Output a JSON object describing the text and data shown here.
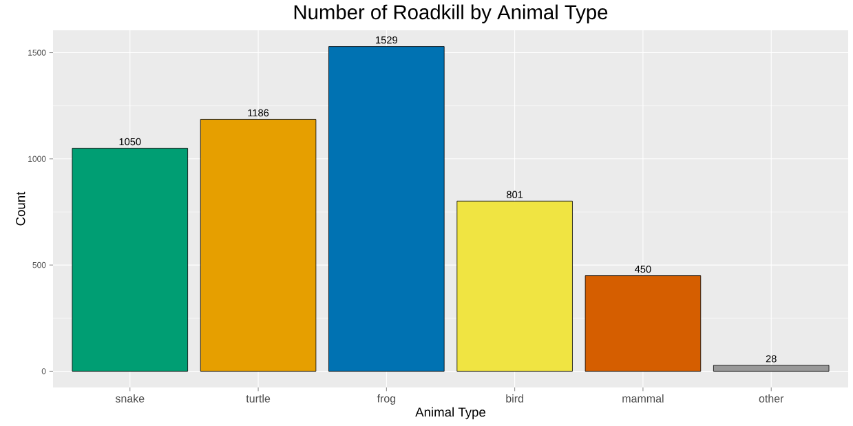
{
  "chart_data": {
    "type": "bar",
    "title": "Number of Roadkill by Animal Type",
    "xlabel": "Animal Type",
    "ylabel": "Count",
    "categories": [
      "snake",
      "turtle",
      "frog",
      "bird",
      "mammal",
      "other"
    ],
    "values": [
      1050,
      1186,
      1529,
      801,
      450,
      28
    ],
    "colors": [
      "#009e73",
      "#e69f00",
      "#0072b2",
      "#f0e442",
      "#d55e00",
      "#999999"
    ],
    "ylim": [
      -76.45,
      1605.45
    ],
    "yticks": [
      0,
      500,
      1000,
      1500
    ],
    "grid": true,
    "data_labels": true
  }
}
